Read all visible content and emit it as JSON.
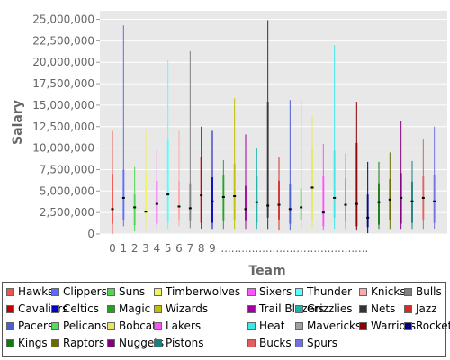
{
  "chart_data": {
    "type": "box",
    "title": "",
    "xlabel": "Team",
    "ylabel": "Salary",
    "ylim": [
      0,
      26000000
    ],
    "yticks": [
      0,
      2500000,
      5000000,
      7500000,
      10000000,
      12500000,
      15000000,
      17500000,
      20000000,
      22500000,
      25000000
    ],
    "ytick_labels": [
      "0",
      "2,500,000",
      "5,000,000",
      "7,500,000",
      "10,000,000",
      "12,500,000",
      "15,000,000",
      "17,500,000",
      "20,000,000",
      "22,500,000",
      "25,000,000"
    ],
    "xtick_labels": [
      "0",
      "1",
      "2",
      "3",
      "4",
      "5",
      "6",
      "7",
      "8",
      "9",
      "..........................................."
    ],
    "grid": true,
    "legend_position": "bottom",
    "series": [
      {
        "name": "Hawks",
        "color": "#ef5350",
        "min": 0,
        "q1": 1200000,
        "median": 2900000,
        "q3": 7000000,
        "max": 12000000
      },
      {
        "name": "Clippers",
        "color": "#5c6bff",
        "min": 900000,
        "q1": 1600000,
        "median": 4200000,
        "q3": 7500000,
        "max": 24300000
      },
      {
        "name": "Suns",
        "color": "#4dd84d",
        "min": 300000,
        "q1": 1000000,
        "median": 3100000,
        "q3": 4600000,
        "max": 7800000
      },
      {
        "name": "Timberwolves",
        "color": "#f2f25a",
        "min": 400000,
        "q1": 2200000,
        "median": 2600000,
        "q3": 7000000,
        "max": 12200000
      },
      {
        "name": "Sixers",
        "color": "#ff55ff",
        "min": 500000,
        "q1": 1200000,
        "median": 3500000,
        "q3": 6200000,
        "max": 9900000
      },
      {
        "name": "Thunder",
        "color": "#55ffff",
        "min": 500000,
        "q1": 1400000,
        "median": 4600000,
        "q3": 11000000,
        "max": 20200000
      },
      {
        "name": "Knicks",
        "color": "#ffa8a8",
        "min": 900000,
        "q1": 1600000,
        "median": 3200000,
        "q3": 6200000,
        "max": 12000000
      },
      {
        "name": "Bulls",
        "color": "#808080",
        "min": 700000,
        "q1": 1500000,
        "median": 3000000,
        "q3": 5900000,
        "max": 21300000
      },
      {
        "name": "Cavaliers",
        "color": "#c00000",
        "min": 600000,
        "q1": 1300000,
        "median": 4500000,
        "q3": 9000000,
        "max": 12500000
      },
      {
        "name": "Celtics",
        "color": "#0000c0",
        "min": 500000,
        "q1": 1300000,
        "median": 3800000,
        "q3": 6600000,
        "max": 12000000
      },
      {
        "name": "Magic",
        "color": "#1ea51e",
        "min": 500000,
        "q1": 1500000,
        "median": 4300000,
        "q3": 6800000,
        "max": 8600000
      },
      {
        "name": "Wizards",
        "color": "#c0c000",
        "min": 500000,
        "q1": 1600000,
        "median": 4400000,
        "q3": 8200000,
        "max": 15800000
      },
      {
        "name": "Trail Blazers",
        "color": "#a000a0",
        "min": 500000,
        "q1": 1500000,
        "median": 2900000,
        "q3": 5600000,
        "max": 11600000
      },
      {
        "name": "Grizzlies",
        "color": "#20b2aa",
        "min": 500000,
        "q1": 1300000,
        "median": 3700000,
        "q3": 6700000,
        "max": 10000000
      },
      {
        "name": "Nets",
        "color": "#333333",
        "min": 500000,
        "q1": 1900000,
        "median": 3300000,
        "q3": 15400000,
        "max": 24900000
      },
      {
        "name": "Jazz",
        "color": "#d22b2b",
        "min": 400000,
        "q1": 1700000,
        "median": 3400000,
        "q3": 6200000,
        "max": 8900000
      },
      {
        "name": "Pacers",
        "color": "#4a5cd6",
        "min": 400000,
        "q1": 1200000,
        "median": 2900000,
        "q3": 5800000,
        "max": 15600000
      },
      {
        "name": "Pelicans",
        "color": "#55dd55",
        "min": 500000,
        "q1": 1600000,
        "median": 3100000,
        "q3": 5300000,
        "max": 15600000
      },
      {
        "name": "Bobcats",
        "color": "#e8e860",
        "min": 500000,
        "q1": 1700000,
        "median": 5400000,
        "q3": 9900000,
        "max": 13700000
      },
      {
        "name": "Lakers",
        "color": "#ff50ff",
        "min": 400000,
        "q1": 900000,
        "median": 2500000,
        "q3": 6700000,
        "max": 10500000
      },
      {
        "name": "Heat",
        "color": "#3ee8e8",
        "min": 500000,
        "q1": 1900000,
        "median": 4200000,
        "q3": 9700000,
        "max": 22000000
      },
      {
        "name": "Mavericks",
        "color": "#a0a0a0",
        "min": 500000,
        "q1": 1400000,
        "median": 3400000,
        "q3": 6500000,
        "max": 9400000
      },
      {
        "name": "Warriors",
        "color": "#8b0000",
        "min": 400000,
        "q1": 900000,
        "median": 3500000,
        "q3": 10600000,
        "max": 15400000
      },
      {
        "name": "Rockets",
        "color": "#000080",
        "min": 100000,
        "q1": 800000,
        "median": 1900000,
        "q3": 4600000,
        "max": 8400000
      },
      {
        "name": "Kings",
        "color": "#137a13",
        "min": 500000,
        "q1": 1100000,
        "median": 3700000,
        "q3": 5900000,
        "max": 8400000
      },
      {
        "name": "Raptors",
        "color": "#6b6b00",
        "min": 500000,
        "q1": 1600000,
        "median": 4000000,
        "q3": 6400000,
        "max": 9500000
      },
      {
        "name": "Nuggets",
        "color": "#800080",
        "min": 500000,
        "q1": 1200000,
        "median": 4200000,
        "q3": 7100000,
        "max": 13200000
      },
      {
        "name": "Pistons",
        "color": "#1a7f7f",
        "min": 500000,
        "q1": 1300000,
        "median": 3800000,
        "q3": 6100000,
        "max": 8500000
      },
      {
        "name": "Bucks",
        "color": "#e06060",
        "min": 500000,
        "q1": 1700000,
        "median": 4200000,
        "q3": 6700000,
        "max": 11000000
      },
      {
        "name": "Spurs",
        "color": "#7070e0",
        "min": 600000,
        "q1": 1300000,
        "median": 3800000,
        "q3": 6900000,
        "max": 12500000
      }
    ]
  }
}
